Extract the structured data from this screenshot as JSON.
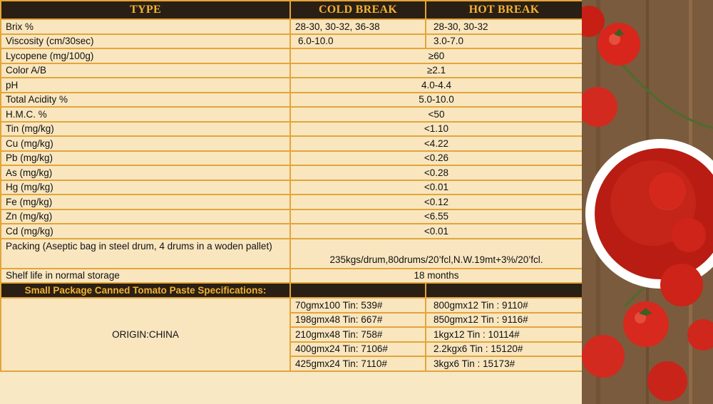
{
  "header": {
    "type": "TYPE",
    "cold": "COLD BREAK",
    "hot": "HOT BREAK"
  },
  "rows_split": [
    {
      "label": "Brix %",
      "cold": "28-30, 30-32, 36-38",
      "hot": "28-30, 30-32"
    },
    {
      "label": "Viscosity (cm/30sec)",
      "cold": "6.0-10.0",
      "hot": "3.0-7.0"
    }
  ],
  "rows_merged": [
    {
      "label": "Lycopene (mg/100g)",
      "value": "≥60"
    },
    {
      "label": "Color A/B",
      "value": "≥2.1"
    },
    {
      "label": "pH",
      "value": "4.0-4.4"
    },
    {
      "label": "Total Acidity %",
      "value": "5.0-10.0"
    },
    {
      "label": "H.M.C. %",
      "value": "<50"
    },
    {
      "label": "Tin (mg/kg)",
      "value": "<1.10"
    },
    {
      "label": "Cu (mg/kg)",
      "value": "<4.22"
    },
    {
      "label": "Pb (mg/kg)",
      "value": "<0.26"
    },
    {
      "label": "As (mg/kg)",
      "value": "<0.28"
    },
    {
      "label": "Hg (mg/kg)",
      "value": "<0.01"
    },
    {
      "label": "Fe (mg/kg)",
      "value": "<0.12"
    },
    {
      "label": "Zn (mg/kg)",
      "value": "<6.55"
    },
    {
      "label": "Cd (mg/kg)",
      "value": "<0.01"
    }
  ],
  "packing": {
    "label": "Packing (Aseptic bag in steel drum, 4 drums in a woden pallet)",
    "value": "235kgs/drum,80drums/20’fcl,N.W.19mt+3%/20’fcl."
  },
  "shelf": {
    "label": "Shelf life in normal storage",
    "value": "18 months"
  },
  "small_package": {
    "title": "Small Package Canned Tomato Paste Specifications:",
    "origin": "ORIGIN:CHINA",
    "left": [
      "70gmx100 Tin: 539#",
      "198gmx48 Tin: 667#",
      "210gmx48 Tin: 758#",
      "400gmx24 Tin: 7106#",
      "425gmx24 Tin: 7110#"
    ],
    "right": [
      "800gmx12 Tin  : 9110#",
      "850gmx12 Tin  : 9116#",
      "1kgx12 Tin  :  10114#",
      "2.2kgx6 Tin  : 15120#",
      "3kgx6 Tin  :  15173#"
    ]
  }
}
